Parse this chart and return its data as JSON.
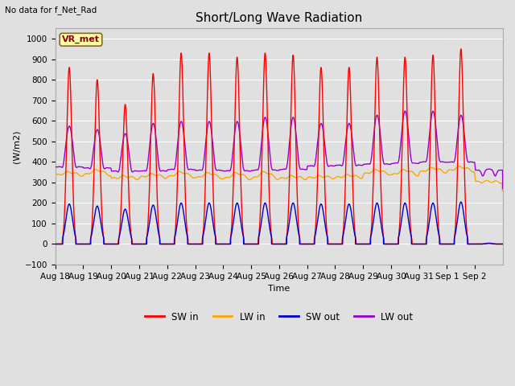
{
  "title": "Short/Long Wave Radiation",
  "ylabel": "(W/m2)",
  "xlabel": "Time",
  "top_left_text": "No data for f_Net_Rad",
  "legend_label_text": "VR_met",
  "ylim": [
    -100,
    1050
  ],
  "yticks": [
    -100,
    0,
    100,
    200,
    300,
    400,
    500,
    600,
    700,
    800,
    900,
    1000
  ],
  "background_color": "#e0e0e0",
  "plot_bg_color": "#e0e0e0",
  "grid_color": "#ffffff",
  "colors": {
    "SW_in": "#ff0000",
    "LW_in": "#ffa500",
    "SW_out": "#0000cc",
    "LW_out": "#9900cc"
  },
  "line_width": 1.0,
  "n_days": 16,
  "SW_in_peaks": [
    860,
    800,
    680,
    830,
    930,
    930,
    910,
    930,
    920,
    860,
    860,
    910,
    910,
    920,
    950,
    5
  ],
  "SW_out_peaks": [
    195,
    185,
    170,
    190,
    200,
    200,
    200,
    200,
    200,
    195,
    195,
    200,
    200,
    200,
    205,
    3
  ],
  "LW_in_base": [
    330,
    330,
    315,
    320,
    320,
    315,
    310,
    310,
    315,
    320,
    320,
    335,
    330,
    345,
    350,
    300
  ],
  "LW_in_bump": [
    20,
    30,
    15,
    20,
    30,
    30,
    35,
    40,
    15,
    10,
    15,
    25,
    30,
    25,
    25,
    5
  ],
  "LW_out_night": [
    375,
    370,
    355,
    355,
    362,
    358,
    355,
    358,
    362,
    380,
    383,
    388,
    392,
    398,
    398,
    360
  ],
  "LW_out_peaks": [
    575,
    558,
    538,
    588,
    598,
    598,
    598,
    618,
    618,
    588,
    588,
    628,
    648,
    648,
    628,
    365
  ],
  "x_tick_labels": [
    "Aug 18",
    "Aug 19",
    "Aug 20",
    "Aug 21",
    "Aug 22",
    "Aug 23",
    "Aug 24",
    "Aug 25",
    "Aug 26",
    "Aug 27",
    "Aug 28",
    "Aug 29",
    "Aug 30",
    "Aug 31",
    "Sep 1",
    "Sep 2"
  ],
  "legend_entries": [
    "SW in",
    "LW in",
    "SW out",
    "LW out"
  ],
  "figsize": [
    6.4,
    4.8
  ],
  "dpi": 100
}
